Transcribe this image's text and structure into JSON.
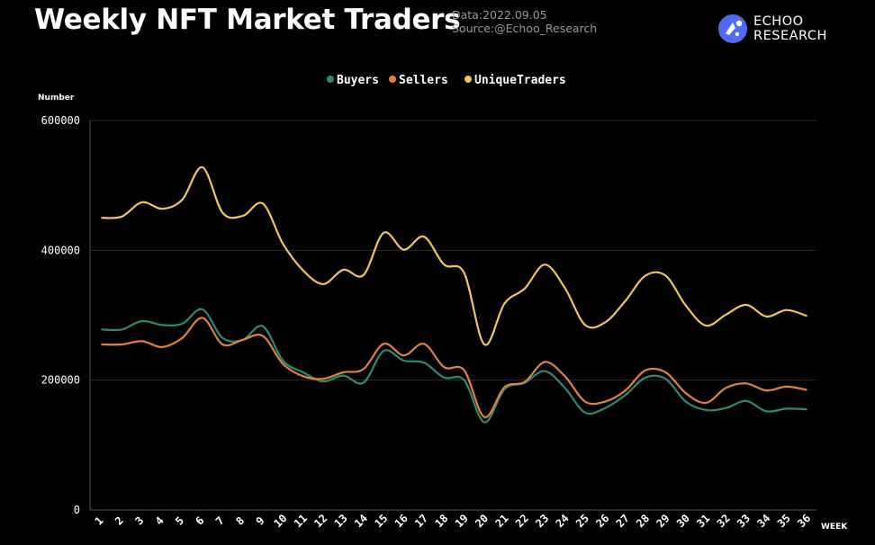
{
  "header": {
    "title": "Weekly NFT Market Traders",
    "date_line": "Data:2022.09.05",
    "source_line": "Source:@Echoo_Research"
  },
  "logo": {
    "line1": "ECHOO",
    "line2": "RESEARCH",
    "icon": "echoo-logo-icon",
    "color": "#4f6bf0"
  },
  "chart_data": {
    "type": "line",
    "title": "Weekly NFT Market Traders",
    "xlabel": "WEEK",
    "ylabel": "Number",
    "ylim": [
      0,
      600000
    ],
    "yticks": [
      0,
      200000,
      400000,
      600000
    ],
    "grid": true,
    "legend_position": "top-center",
    "categories": [
      "1",
      "2",
      "3",
      "4",
      "5",
      "6",
      "7",
      "8",
      "9",
      "10",
      "11",
      "12",
      "13",
      "14",
      "15",
      "16",
      "17",
      "18",
      "19",
      "20",
      "21",
      "22",
      "23",
      "24",
      "25",
      "26",
      "27",
      "28",
      "29",
      "30",
      "31",
      "32",
      "33",
      "34",
      "35",
      "36"
    ],
    "series": [
      {
        "name": "Buyers",
        "color": "#2e8a6e",
        "values": [
          278000,
          278000,
          291000,
          285000,
          287000,
          309000,
          265000,
          262000,
          283000,
          230000,
          212000,
          198000,
          207000,
          196000,
          245000,
          230000,
          227000,
          204000,
          200000,
          135000,
          186000,
          196000,
          214000,
          188000,
          150000,
          157000,
          177000,
          204000,
          202000,
          167000,
          154000,
          157000,
          168000,
          152000,
          156000,
          155000
        ]
      },
      {
        "name": "Sellers",
        "color": "#e0813f",
        "values": [
          255000,
          255000,
          260000,
          251000,
          265000,
          296000,
          255000,
          262000,
          268000,
          225000,
          206000,
          202000,
          212000,
          217000,
          256000,
          238000,
          256000,
          220000,
          215000,
          143000,
          189000,
          197000,
          228000,
          206000,
          167000,
          167000,
          184000,
          215000,
          212000,
          180000,
          165000,
          188000,
          195000,
          184000,
          190000,
          185000
        ]
      },
      {
        "name": "UniqueTraders",
        "color": "#f0c55a",
        "values": [
          450000,
          452000,
          474000,
          464000,
          478000,
          528000,
          458000,
          453000,
          472000,
          410000,
          369000,
          348000,
          370000,
          362000,
          427000,
          401000,
          421000,
          378000,
          365000,
          255000,
          318000,
          341000,
          378000,
          342000,
          285000,
          289000,
          322000,
          361000,
          361000,
          315000,
          284000,
          301000,
          316000,
          298000,
          308000,
          299000
        ]
      }
    ]
  }
}
